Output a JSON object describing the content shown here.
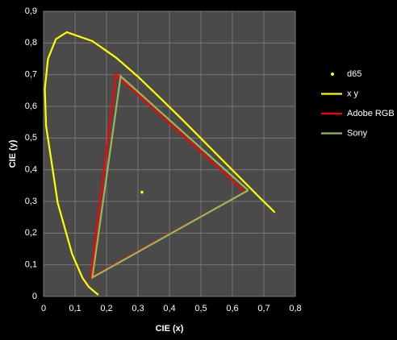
{
  "chart_data": {
    "type": "scatter",
    "x_label": "CIE (x)",
    "y_label": "CIE (y)",
    "xlim": [
      0,
      0.8
    ],
    "ylim": [
      0,
      0.9
    ],
    "xticks": [
      {
        "value": 0,
        "label": "0"
      },
      {
        "value": 0.1,
        "label": "0,1"
      },
      {
        "value": 0.2,
        "label": "0,2"
      },
      {
        "value": 0.3,
        "label": "0,3"
      },
      {
        "value": 0.4,
        "label": "0,4"
      },
      {
        "value": 0.5,
        "label": "0,5"
      },
      {
        "value": 0.6,
        "label": "0,6"
      },
      {
        "value": 0.7,
        "label": "0,7"
      },
      {
        "value": 0.8,
        "label": "0,8"
      }
    ],
    "yticks": [
      {
        "value": 0,
        "label": "0"
      },
      {
        "value": 0.1,
        "label": "0,1"
      },
      {
        "value": 0.2,
        "label": "0,2"
      },
      {
        "value": 0.3,
        "label": "0,3"
      },
      {
        "value": 0.4,
        "label": "0,4"
      },
      {
        "value": 0.5,
        "label": "0,5"
      },
      {
        "value": 0.6,
        "label": "0,6"
      },
      {
        "value": 0.7,
        "label": "0,7"
      },
      {
        "value": 0.8,
        "label": "0,8"
      },
      {
        "value": 0.9,
        "label": "0,9"
      }
    ],
    "grid": true,
    "legend": "right",
    "series": [
      {
        "name": "d65",
        "color": "#ffff00",
        "line": false,
        "x": [
          0.3127
        ],
        "values": [
          0.329
        ]
      },
      {
        "name": "x y",
        "color": "#ffff00",
        "line": true,
        "x": [
          0.1741,
          0.144,
          0.124,
          0.091,
          0.045,
          0.008,
          0.004,
          0.014,
          0.039,
          0.074,
          0.155,
          0.23,
          0.302,
          0.373,
          0.444,
          0.512,
          0.575,
          0.627,
          0.691,
          0.719,
          0.735
        ],
        "values": [
          0.005,
          0.03,
          0.058,
          0.133,
          0.295,
          0.538,
          0.655,
          0.75,
          0.812,
          0.834,
          0.806,
          0.754,
          0.692,
          0.624,
          0.555,
          0.487,
          0.424,
          0.372,
          0.308,
          0.281,
          0.265
        ]
      },
      {
        "name": "Adobe RGB",
        "color": "#ff0000",
        "line": true,
        "x": [
          0.64,
          0.23,
          0.15,
          0.64
        ],
        "values": [
          0.33,
          0.7,
          0.06,
          0.33
        ]
      },
      {
        "name": "Sony",
        "color": "#8fbc5a",
        "line": true,
        "x": [
          0.65,
          0.245,
          0.155,
          0.65
        ],
        "values": [
          0.335,
          0.695,
          0.06,
          0.335
        ]
      }
    ]
  }
}
